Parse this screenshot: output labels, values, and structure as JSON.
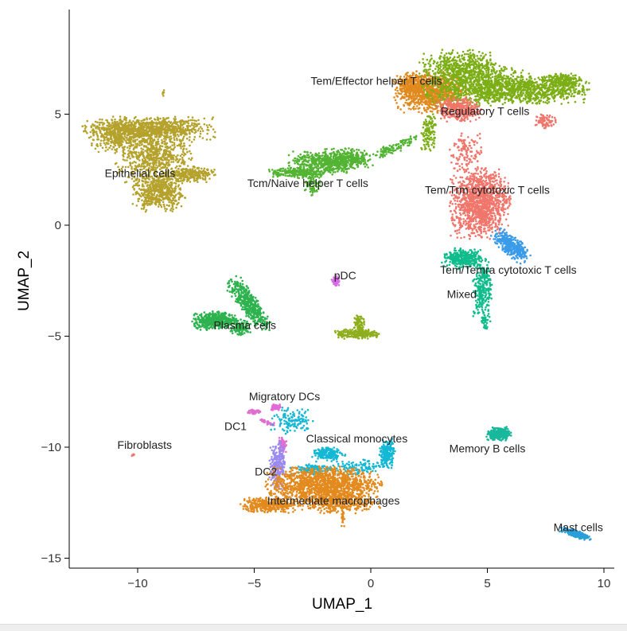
{
  "chart_data": {
    "type": "scatter",
    "title": "",
    "xlabel": "UMAP_1",
    "ylabel": "UMAP_2",
    "xlim": [
      -12.9,
      10.4
    ],
    "ylim": [
      -15.4,
      9.7
    ],
    "xticks": [
      -10,
      -5,
      0,
      5,
      10
    ],
    "yticks": [
      -15,
      -10,
      -5,
      0,
      5
    ],
    "grid": false,
    "legend": "none (labels placed on clusters)",
    "clusters": [
      {
        "name": "Epithelial cells",
        "color": "#B5A22C",
        "label_at": [
          -9.9,
          2.35
        ],
        "blobs": [
          [
            -9.5,
            4.35,
            2.4,
            0.45,
            0,
            900
          ],
          [
            -9.3,
            3.1,
            1.4,
            1.1,
            0,
            700
          ],
          [
            -9.1,
            1.5,
            1.0,
            0.75,
            0,
            500
          ],
          [
            -7.8,
            2.3,
            1.0,
            0.3,
            0,
            250
          ],
          [
            -11.0,
            4.0,
            0.9,
            0.6,
            0,
            250
          ],
          [
            -8.9,
            5.9,
            0.05,
            0.2,
            0,
            6
          ]
        ]
      },
      {
        "name": "Tcm/Naive helper T cells",
        "color": "#52B432",
        "label_at": [
          -2.7,
          1.9
        ],
        "blobs": [
          [
            -2.0,
            2.8,
            1.3,
            0.45,
            0,
            450
          ],
          [
            -1.0,
            3.0,
            1.0,
            0.4,
            0,
            300
          ],
          [
            -3.2,
            2.35,
            1.0,
            0.2,
            0,
            200
          ],
          [
            -2.5,
            1.9,
            0.3,
            0.5,
            0,
            80
          ],
          [
            0.8,
            3.4,
            0.6,
            0.2,
            20,
            80
          ],
          [
            1.6,
            3.8,
            0.4,
            0.2,
            30,
            30
          ]
        ]
      },
      {
        "name": "Tem/Effector helper T cells",
        "color": "#E08A1E",
        "label_at": [
          0.24,
          6.5
        ],
        "blobs": [
          [
            2.6,
            6.0,
            1.3,
            0.8,
            0,
            900
          ],
          [
            1.7,
            6.3,
            0.6,
            0.5,
            0,
            200
          ]
        ]
      },
      {
        "name": "Regulatory T cells",
        "color": "#7CAE16",
        "label_at": [
          4.9,
          5.15
        ],
        "blobs": [
          [
            4.6,
            6.3,
            2.0,
            0.8,
            0,
            900
          ],
          [
            7.0,
            6.1,
            2.0,
            0.55,
            0,
            700
          ],
          [
            3.8,
            7.2,
            1.5,
            0.6,
            0,
            400
          ],
          [
            8.3,
            6.5,
            0.8,
            0.35,
            0,
            200
          ],
          [
            2.5,
            4.2,
            0.3,
            0.8,
            0,
            120
          ]
        ]
      },
      {
        "name": "Tem/Trm cytotoxic T cells",
        "color": "#F0766C",
        "label_at": [
          5.0,
          1.6
        ],
        "blobs": [
          [
            4.7,
            1.0,
            1.1,
            1.35,
            0,
            1200
          ],
          [
            3.8,
            5.2,
            0.8,
            0.45,
            0,
            350
          ],
          [
            7.5,
            4.7,
            0.4,
            0.3,
            0,
            80
          ],
          [
            4.1,
            3.3,
            0.6,
            0.8,
            0,
            120
          ]
        ]
      },
      {
        "name": "Tem/Temra cytotoxic T cells",
        "color": "#3A9BE8",
        "label_at": [
          5.9,
          -2.0
        ],
        "blobs": [
          [
            6.0,
            -0.9,
            0.8,
            0.35,
            -40,
            350
          ]
        ]
      },
      {
        "name": "Mixed",
        "color": "#10BC8C",
        "label_at": [
          3.9,
          -3.1
        ],
        "blobs": [
          [
            4.0,
            -1.5,
            0.8,
            0.4,
            0,
            350
          ],
          [
            4.8,
            -2.9,
            0.35,
            1.1,
            0,
            250
          ],
          [
            4.9,
            -4.3,
            0.2,
            0.3,
            0,
            40
          ]
        ]
      },
      {
        "name": "Plasma cells",
        "color": "#2DB24E",
        "label_at": [
          -5.4,
          -4.5
        ],
        "blobs": [
          [
            -6.7,
            -4.3,
            0.8,
            0.35,
            0,
            500
          ],
          [
            -5.2,
            -3.6,
            1.2,
            0.35,
            -55,
            450
          ],
          [
            -5.6,
            -4.6,
            0.4,
            0.3,
            0,
            120
          ]
        ]
      },
      {
        "name": "pDC",
        "color": "#D76BE6",
        "label_at": [
          -1.1,
          -2.25
        ],
        "blobs": [
          [
            -1.5,
            -2.5,
            0.15,
            0.2,
            0,
            60
          ]
        ]
      },
      {
        "name": "",
        "color": "#8FAE1E",
        "label_at": null,
        "blobs": [
          [
            -0.6,
            -4.9,
            0.8,
            0.18,
            0,
            250
          ],
          [
            -0.5,
            -4.4,
            0.2,
            0.35,
            0,
            80
          ]
        ]
      },
      {
        "name": "Migratory DCs",
        "color": "#E46AD8",
        "label_at": [
          -3.7,
          -7.7
        ],
        "blobs": [
          [
            -4.1,
            -8.2,
            0.2,
            0.12,
            0,
            60
          ]
        ]
      },
      {
        "name": "DC1",
        "color": "#DE6FD0",
        "label_at": [
          -5.8,
          -9.05
        ],
        "blobs": [
          [
            -5.0,
            -8.4,
            0.25,
            0.1,
            0,
            50
          ],
          [
            -4.4,
            -8.9,
            0.3,
            0.08,
            -20,
            40
          ],
          [
            -3.8,
            -9.9,
            0.15,
            0.3,
            0,
            70
          ]
        ]
      },
      {
        "name": "DC2",
        "color": "#9A8AF0",
        "label_at": [
          -4.5,
          -11.1
        ],
        "blobs": [
          [
            -4.0,
            -10.8,
            0.3,
            0.9,
            0,
            250
          ]
        ]
      },
      {
        "name": "Classical monocytes",
        "color": "#14B8D4",
        "label_at": [
          -0.6,
          -9.6
        ],
        "blobs": [
          [
            -3.4,
            -8.8,
            0.8,
            0.5,
            0,
            120
          ],
          [
            -1.8,
            -10.3,
            0.6,
            0.3,
            0,
            200
          ],
          [
            0.7,
            -10.3,
            0.3,
            0.6,
            0,
            200
          ],
          [
            -2.5,
            -11.0,
            0.8,
            0.2,
            0,
            120
          ],
          [
            -0.5,
            -10.9,
            1.0,
            0.3,
            0,
            100
          ]
        ]
      },
      {
        "name": "Intermediate macrophages",
        "color": "#E38A1E",
        "label_at": [
          -1.6,
          -12.4
        ],
        "blobs": [
          [
            -2.0,
            -11.7,
            2.1,
            0.7,
            0,
            1300
          ],
          [
            -4.4,
            -12.6,
            1.0,
            0.3,
            0,
            350
          ],
          [
            -1.5,
            -12.5,
            1.6,
            0.4,
            0,
            400
          ],
          [
            -1.2,
            -13.2,
            0.06,
            0.3,
            0,
            20
          ]
        ]
      },
      {
        "name": "Memory B cells",
        "color": "#18B89C",
        "label_at": [
          5.0,
          -10.05
        ],
        "blobs": [
          [
            5.5,
            -9.4,
            0.45,
            0.28,
            0,
            300
          ]
        ]
      },
      {
        "name": "Mast cells",
        "color": "#2A9ED8",
        "label_at": [
          8.9,
          -13.6
        ],
        "blobs": [
          [
            8.8,
            -13.9,
            0.6,
            0.13,
            -20,
            200
          ]
        ]
      },
      {
        "name": "Fibroblasts",
        "color": "#F0766C",
        "label_at": [
          -9.7,
          -9.9
        ],
        "blobs": [
          [
            -10.2,
            -10.35,
            0.05,
            0.04,
            0,
            6
          ]
        ]
      }
    ]
  }
}
